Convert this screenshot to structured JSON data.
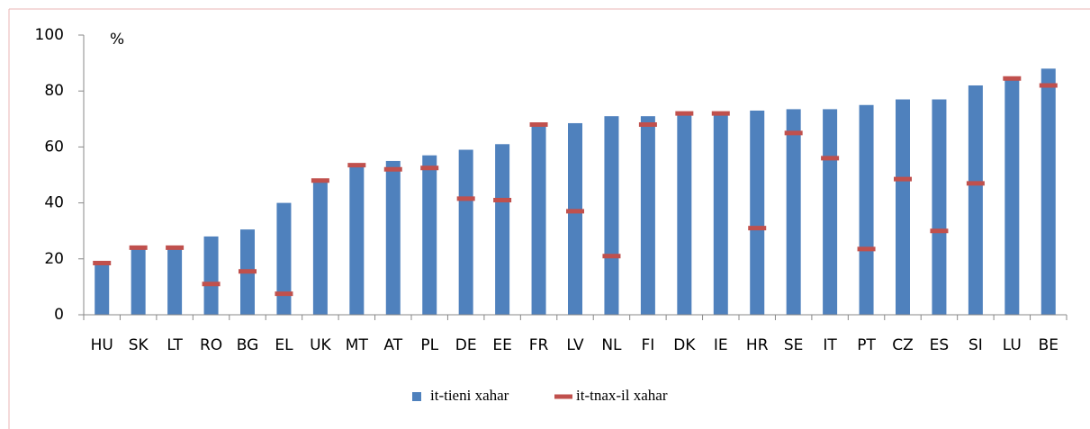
{
  "chart_data": {
    "type": "bar",
    "ylabel": "%",
    "categories": [
      "HU",
      "SK",
      "LT",
      "RO",
      "BG",
      "EL",
      "UK",
      "MT",
      "AT",
      "PL",
      "DE",
      "EE",
      "FR",
      "LV",
      "NL",
      "FI",
      "DK",
      "IE",
      "HR",
      "SE",
      "IT",
      "PT",
      "CZ",
      "ES",
      "SI",
      "LU",
      "BE"
    ],
    "series": [
      {
        "name": "it-tieni xahar",
        "color": "#4f81bd",
        "mark": "bar",
        "values": [
          18,
          24,
          24,
          28,
          30.5,
          40,
          48,
          54,
          55,
          57,
          59,
          61,
          68.5,
          68.5,
          71,
          71,
          72,
          72,
          73,
          73.5,
          73.5,
          75,
          77,
          77,
          82,
          84,
          88
        ]
      },
      {
        "name": "it-tnax-il xahar",
        "color": "#c0504d",
        "mark": "dash",
        "values": [
          18.5,
          24,
          24,
          11,
          15.5,
          7.5,
          48,
          53.5,
          52,
          52.5,
          41.5,
          41,
          68,
          37,
          21,
          68,
          72,
          72,
          31,
          65,
          56,
          23.5,
          48.5,
          30,
          47,
          84.5,
          82
        ]
      }
    ],
    "ylim": [
      0,
      100
    ],
    "yticks": [
      0,
      20,
      40,
      60,
      80,
      100
    ],
    "legend": "bottom"
  }
}
